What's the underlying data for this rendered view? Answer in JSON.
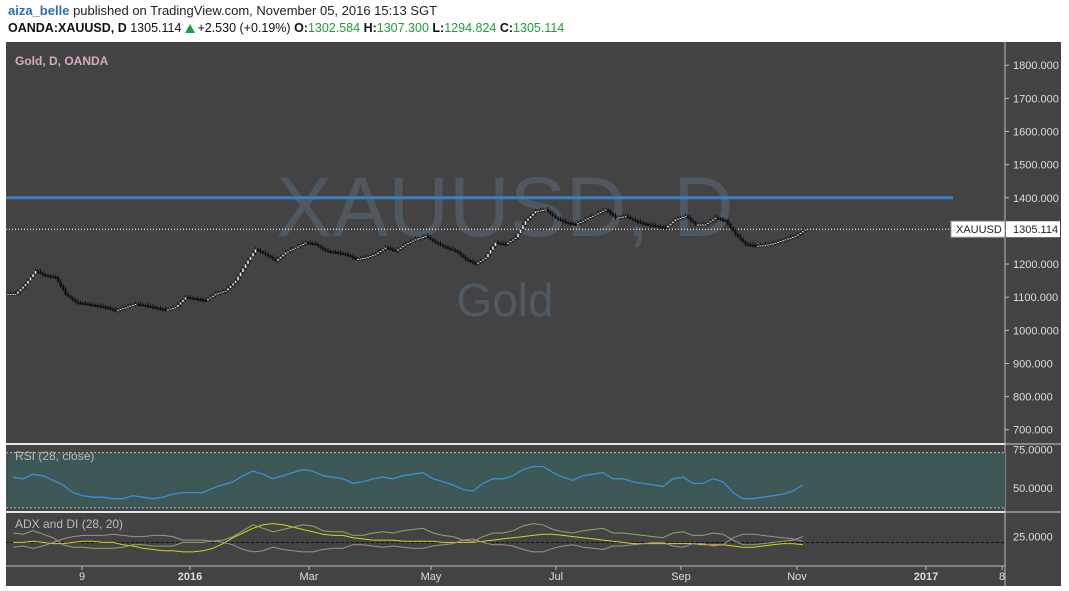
{
  "header": {
    "user": "aiza_belle",
    "published": "published on TradingView.com, November 05, 2016 15:13 SGT",
    "symbol": "OANDA:XAUUSD, D",
    "last": "1305.114",
    "change": "+2.530 (+0.19%)",
    "open_label": "O:",
    "open": "1302.584",
    "high_label": "H:",
    "high": "1307.300",
    "low_label": "L:",
    "low": "1294.824",
    "close_label": "C:",
    "close": "1305.114"
  },
  "colors": {
    "panel_bg": "#434343",
    "rsi_band": "#3d5656",
    "resistance_line": "#3a7fc4",
    "rsi_line": "#3a8fd6",
    "adx_line": "#d8d21a",
    "di_plus": "#8fa66a",
    "di_minus": "#a88a92",
    "candle_up": "#e8e8e8",
    "candle_down": "#111111",
    "watermark": "#5a6a7a"
  },
  "chart_data": [
    {
      "type": "candlestick",
      "title": "Gold, D, OANDA",
      "watermark_symbol": "XAUUSD, D",
      "watermark_name": "Gold",
      "yticks": [
        "1800.000",
        "1700.000",
        "1600.000",
        "1500.000",
        "1400.000",
        "1300.000",
        "1200.000",
        "1100.000",
        "1000.000",
        "900.000",
        "800.000",
        "700.000"
      ],
      "ylim": [
        660,
        1870
      ],
      "xticks": [
        "9",
        "2016",
        "Mar",
        "May",
        "Jul",
        "Sep",
        "Nov",
        "2017",
        "8"
      ],
      "horizontal_line": 1400,
      "last_price_label": "XAUUSD",
      "last_price": "1305.114",
      "x_start": "2015-11-09",
      "close_series": [
        1110,
        1140,
        1180,
        1165,
        1160,
        1110,
        1085,
        1080,
        1075,
        1070,
        1060,
        1070,
        1080,
        1075,
        1068,
        1062,
        1070,
        1100,
        1095,
        1090,
        1110,
        1120,
        1150,
        1200,
        1245,
        1230,
        1210,
        1235,
        1250,
        1265,
        1260,
        1240,
        1235,
        1230,
        1215,
        1220,
        1230,
        1250,
        1240,
        1260,
        1275,
        1285,
        1265,
        1250,
        1240,
        1215,
        1200,
        1220,
        1265,
        1260,
        1280,
        1330,
        1360,
        1365,
        1340,
        1325,
        1320,
        1335,
        1350,
        1365,
        1340,
        1345,
        1330,
        1320,
        1315,
        1310,
        1335,
        1345,
        1320,
        1320,
        1340,
        1330,
        1290,
        1260,
        1255,
        1258,
        1265,
        1275,
        1285,
        1305
      ]
    },
    {
      "type": "line",
      "title": "RSI (28, close)",
      "yticks": [
        "75.0000",
        "50.0000"
      ],
      "ylim": [
        35,
        78
      ],
      "band": [
        30,
        70
      ],
      "values": [
        57,
        56,
        59,
        58,
        55,
        52,
        47,
        45,
        44,
        44,
        43,
        43,
        45,
        44,
        43,
        44,
        46,
        47,
        47,
        47,
        50,
        52,
        54,
        58,
        61,
        59,
        56,
        58,
        60,
        62,
        61,
        58,
        57,
        56,
        53,
        54,
        56,
        57,
        56,
        58,
        59,
        60,
        56,
        54,
        52,
        49,
        48,
        53,
        56,
        56,
        58,
        62,
        64,
        64,
        60,
        57,
        55,
        58,
        59,
        60,
        56,
        56,
        54,
        53,
        52,
        51,
        56,
        57,
        53,
        53,
        56,
        54,
        47,
        43,
        43,
        44,
        45,
        46,
        48,
        52
      ]
    },
    {
      "type": "line",
      "title": "ADX and DI (28, 20)",
      "yticks": [
        "25.0000"
      ],
      "ylim": [
        0,
        45
      ],
      "threshold": 20,
      "series": [
        {
          "values": [
            20,
            20,
            21,
            20,
            19,
            19,
            20,
            21,
            21,
            20,
            20,
            18,
            17,
            15,
            14,
            13,
            13,
            12,
            12,
            13,
            15,
            19,
            24,
            28,
            32,
            35,
            36,
            35,
            33,
            31,
            29,
            27,
            26,
            26,
            24,
            23,
            22,
            22,
            22,
            21,
            21,
            21,
            21,
            20,
            20,
            20,
            20,
            21,
            22,
            23,
            24,
            25,
            26,
            27,
            27,
            26,
            25,
            24,
            23,
            22,
            21,
            20,
            19,
            19,
            19,
            19,
            19,
            19,
            19,
            18,
            18,
            18,
            17,
            16,
            16,
            17,
            18,
            19,
            19,
            18
          ]
        },
        {
          "values": [
            28,
            27,
            30,
            27,
            24,
            18,
            16,
            16,
            15,
            15,
            15,
            16,
            18,
            18,
            17,
            17,
            17,
            20,
            20,
            20,
            21,
            22,
            25,
            30,
            35,
            32,
            29,
            31,
            33,
            35,
            34,
            30,
            29,
            29,
            26,
            26,
            28,
            29,
            28,
            30,
            31,
            32,
            28,
            26,
            25,
            22,
            21,
            25,
            28,
            28,
            30,
            34,
            36,
            35,
            31,
            29,
            28,
            30,
            31,
            32,
            28,
            28,
            27,
            26,
            25,
            24,
            28,
            29,
            26,
            26,
            28,
            27,
            22,
            18,
            18,
            19,
            20,
            21,
            22,
            25
          ]
        },
        {
          "values": [
            16,
            17,
            15,
            17,
            20,
            23,
            25,
            26,
            26,
            26,
            27,
            26,
            25,
            25,
            26,
            26,
            25,
            22,
            22,
            22,
            21,
            20,
            18,
            14,
            12,
            13,
            16,
            14,
            13,
            12,
            12,
            14,
            15,
            15,
            18,
            18,
            17,
            16,
            17,
            16,
            15,
            15,
            17,
            18,
            19,
            22,
            23,
            20,
            18,
            18,
            17,
            14,
            12,
            12,
            15,
            17,
            18,
            16,
            15,
            14,
            17,
            17,
            18,
            19,
            20,
            20,
            17,
            16,
            19,
            19,
            17,
            18,
            24,
            27,
            27,
            26,
            25,
            24,
            23,
            21
          ]
        }
      ]
    }
  ]
}
